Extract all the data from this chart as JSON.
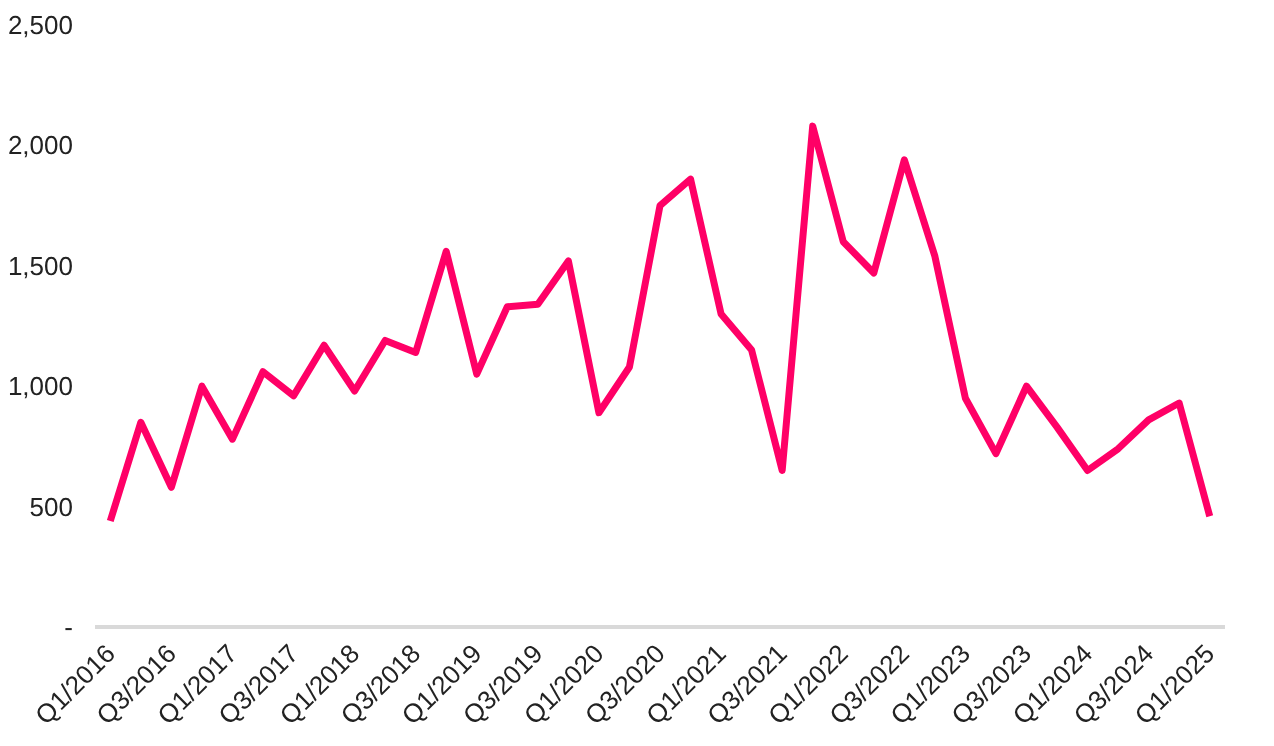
{
  "chart_data": {
    "type": "line",
    "categories": [
      "Q1/2016",
      null,
      "Q3/2016",
      null,
      "Q1/2017",
      null,
      "Q3/2017",
      null,
      "Q1/2018",
      null,
      "Q3/2018",
      null,
      "Q1/2019",
      null,
      "Q3/2019",
      null,
      "Q1/2020",
      null,
      "Q3/2020",
      null,
      "Q1/2021",
      null,
      "Q3/2021",
      null,
      "Q1/2022",
      null,
      "Q3/2022",
      null,
      "Q1/2023",
      null,
      "Q3/2023",
      null,
      "Q1/2024",
      null,
      "Q3/2024",
      null,
      "Q1/2025"
    ],
    "series": [
      {
        "color": "#ff0066",
        "values": [
          440,
          850,
          580,
          1000,
          780,
          1060,
          960,
          1170,
          980,
          1190,
          1140,
          1560,
          1050,
          1330,
          1340,
          1520,
          890,
          1080,
          1750,
          1860,
          1300,
          1150,
          650,
          2080,
          1600,
          1470,
          1940,
          1540,
          950,
          720,
          1000,
          830,
          650,
          740,
          860,
          930,
          460
        ]
      }
    ],
    "ylim": [
      0,
      2500
    ],
    "yticks": [
      {
        "value": 0,
        "label": "-"
      },
      {
        "value": 500,
        "label": "500"
      },
      {
        "value": 1000,
        "label": "1,000"
      },
      {
        "value": 1500,
        "label": "1,500"
      },
      {
        "value": 2000,
        "label": "2,000"
      },
      {
        "value": 2500,
        "label": "2,500"
      }
    ],
    "grid": false,
    "marker": "none",
    "line_style": "solid"
  }
}
